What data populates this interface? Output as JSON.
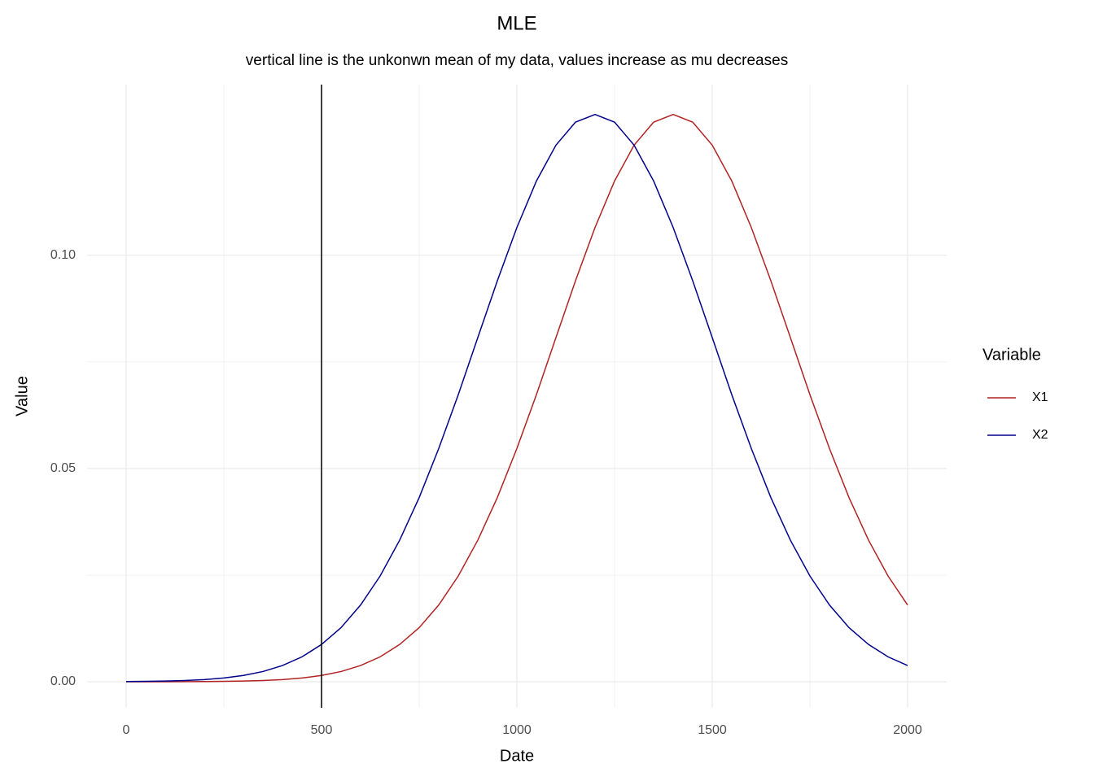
{
  "chart_data": {
    "type": "line",
    "title": "MLE",
    "subtitle": "vertical line is the unkonwn mean of my data, values increase as mu decreases",
    "x_label": "Date",
    "y_label": "Value",
    "legend_title": "Variable",
    "legend": "right",
    "x": [
      0,
      50,
      100,
      150,
      200,
      250,
      300,
      350,
      400,
      450,
      500,
      550,
      600,
      650,
      700,
      750,
      800,
      850,
      900,
      950,
      1000,
      1050,
      1100,
      1150,
      1200,
      1250,
      1300,
      1350,
      1400,
      1450,
      1500,
      1550,
      1600,
      1650,
      1700,
      1750,
      1800,
      1850,
      1900,
      1950,
      2000
    ],
    "series": [
      {
        "name": "X1",
        "color": "#b22222",
        "values": [
          2.5e-06,
          5e-06,
          1e-05,
          2e-05,
          4e-05,
          9e-05,
          0.00016,
          0.00029,
          0.00051,
          0.00088,
          0.00148,
          0.0024,
          0.0038,
          0.00584,
          0.00874,
          0.0127,
          0.018,
          0.0248,
          0.0332,
          0.0432,
          0.0547,
          0.0673,
          0.0807,
          0.094,
          0.1065,
          0.1174,
          0.1258,
          0.1312,
          0.133,
          0.1312,
          0.1258,
          0.1174,
          0.1065,
          0.094,
          0.0807,
          0.0673,
          0.0547,
          0.0432,
          0.0332,
          0.0248,
          0.018
        ]
      },
      {
        "name": "X2",
        "color": "#00008b",
        "values": [
          4e-05,
          9e-05,
          0.00016,
          0.00029,
          0.00051,
          0.00088,
          0.00148,
          0.0024,
          0.0038,
          0.00584,
          0.00874,
          0.0127,
          0.018,
          0.0248,
          0.0332,
          0.0432,
          0.0547,
          0.0673,
          0.0807,
          0.094,
          0.1065,
          0.1174,
          0.1258,
          0.1312,
          0.133,
          0.1312,
          0.1258,
          0.1174,
          0.1065,
          0.094,
          0.0807,
          0.0673,
          0.0547,
          0.0432,
          0.0332,
          0.0248,
          0.018,
          0.0127,
          0.00874,
          0.00584,
          0.0038
        ]
      }
    ],
    "vline": 500,
    "vline_color": "#000000",
    "xlim": [
      -100,
      2100
    ],
    "xticks": [
      0,
      500,
      1000,
      1500,
      2000
    ],
    "ylim": [
      -0.0061,
      0.14
    ],
    "yticks": [
      {
        "value": 0,
        "label": "0.00"
      },
      {
        "value": 0.05,
        "label": "0.05"
      },
      {
        "value": 0.1,
        "label": "0.10"
      }
    ],
    "grid": true
  }
}
